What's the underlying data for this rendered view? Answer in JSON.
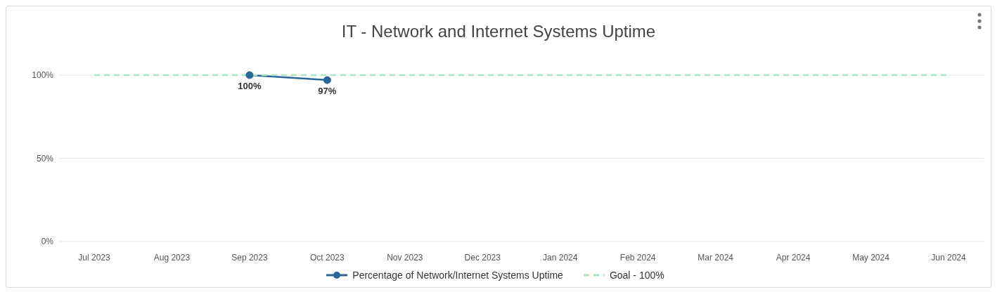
{
  "chart_data": {
    "type": "line",
    "title": "IT - Network and Internet Systems Uptime",
    "categories": [
      "Jul 2023",
      "Aug 2023",
      "Sep 2023",
      "Oct 2023",
      "Nov 2023",
      "Dec 2023",
      "Jan 2024",
      "Feb 2024",
      "Mar 2024",
      "Apr 2024",
      "May 2024",
      "Jun 2024"
    ],
    "series": [
      {
        "name": "Percentage of Network/Internet Systems Uptime",
        "color": "#2a6699",
        "marker": "circle",
        "line_style": "solid",
        "values": [
          null,
          null,
          100,
          97,
          null,
          null,
          null,
          null,
          null,
          null,
          null,
          null
        ],
        "value_labels": [
          null,
          null,
          "100%",
          "97%",
          null,
          null,
          null,
          null,
          null,
          null,
          null,
          null
        ]
      },
      {
        "name": "Goal - 100%",
        "color": "#a8e6bf",
        "marker": "none",
        "line_style": "dashed",
        "values": [
          100,
          100,
          100,
          100,
          100,
          100,
          100,
          100,
          100,
          100,
          100,
          100
        ]
      }
    ],
    "ylim": [
      0,
      100
    ],
    "yticks": [
      {
        "value": 0,
        "label": "0%"
      },
      {
        "value": 50,
        "label": "50%"
      },
      {
        "value": 100,
        "label": "100%"
      }
    ],
    "grid": "y",
    "legend": "bottom"
  }
}
